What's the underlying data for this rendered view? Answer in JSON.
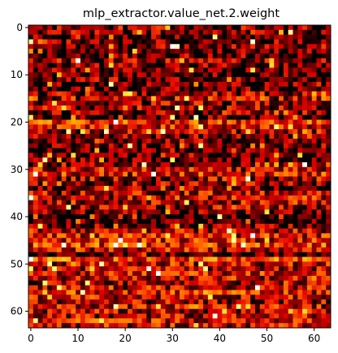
{
  "chart_data": {
    "type": "heatmap",
    "title": "mlp_extractor.value_net.2.weight",
    "xlabel": "",
    "ylabel": "",
    "rows": 64,
    "cols": 64,
    "colormap": "hot",
    "colormap_stops": [
      "#000000",
      "#7a0000",
      "#e10000",
      "#ff5a00",
      "#ffb000",
      "#ffff60",
      "#ffffff"
    ],
    "value_range": [
      0,
      1
    ],
    "xlim": [
      -0.5,
      63.5
    ],
    "ylim": [
      63.5,
      -0.5
    ],
    "xticks": [
      0,
      10,
      20,
      30,
      40,
      50,
      60
    ],
    "yticks": [
      0,
      10,
      20,
      30,
      40,
      50,
      60
    ],
    "xtick_labels": [
      "0",
      "10",
      "20",
      "30",
      "40",
      "50",
      "60"
    ],
    "ytick_labels": [
      "0",
      "10",
      "20",
      "30",
      "40",
      "50",
      "60"
    ],
    "grid": false,
    "legend": "none",
    "value_seed": 20240611,
    "row_bias": [
      0.2,
      0.18,
      0.12,
      0.15,
      0.18,
      0.12,
      0.14,
      0.2,
      0.15,
      0.12,
      0.1,
      0.18,
      0.12,
      0.1,
      0.22,
      0.28,
      0.2,
      0.22,
      0.18,
      0.12,
      0.4,
      0.35,
      0.25,
      0.2,
      0.18,
      0.15,
      0.08,
      0.1,
      0.12,
      0.2,
      0.3,
      0.35,
      0.25,
      0.2,
      0.15,
      0.25,
      0.3,
      0.28,
      0.22,
      0.15,
      0.05,
      0.08,
      0.15,
      0.3,
      0.35,
      0.35,
      0.4,
      0.3,
      0.1,
      0.45,
      0.3,
      0.25,
      0.35,
      0.3,
      0.2,
      0.3,
      0.35,
      0.3,
      0.25,
      0.3,
      0.25,
      0.28,
      0.35,
      0.3
    ]
  }
}
